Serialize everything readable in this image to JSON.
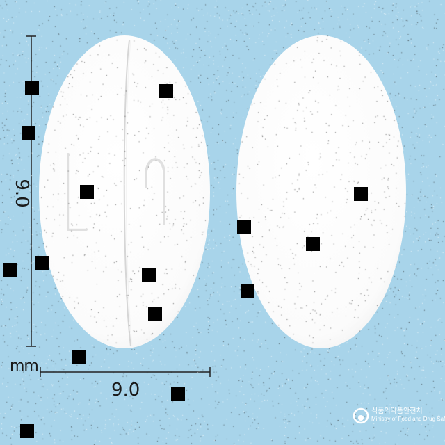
{
  "dimensions": {
    "unit": "mm",
    "width": "9.0",
    "height": "9.0"
  },
  "tablets": {
    "front_imprint": [
      "L",
      "P"
    ],
    "back_imprint": ""
  },
  "watermark": {
    "korean": "식품의약품안전처",
    "english": "Ministry of Food and Drug Safety"
  },
  "colors": {
    "background": "#a8d4ea",
    "tablet": "#ffffff",
    "marker": "#000000"
  }
}
